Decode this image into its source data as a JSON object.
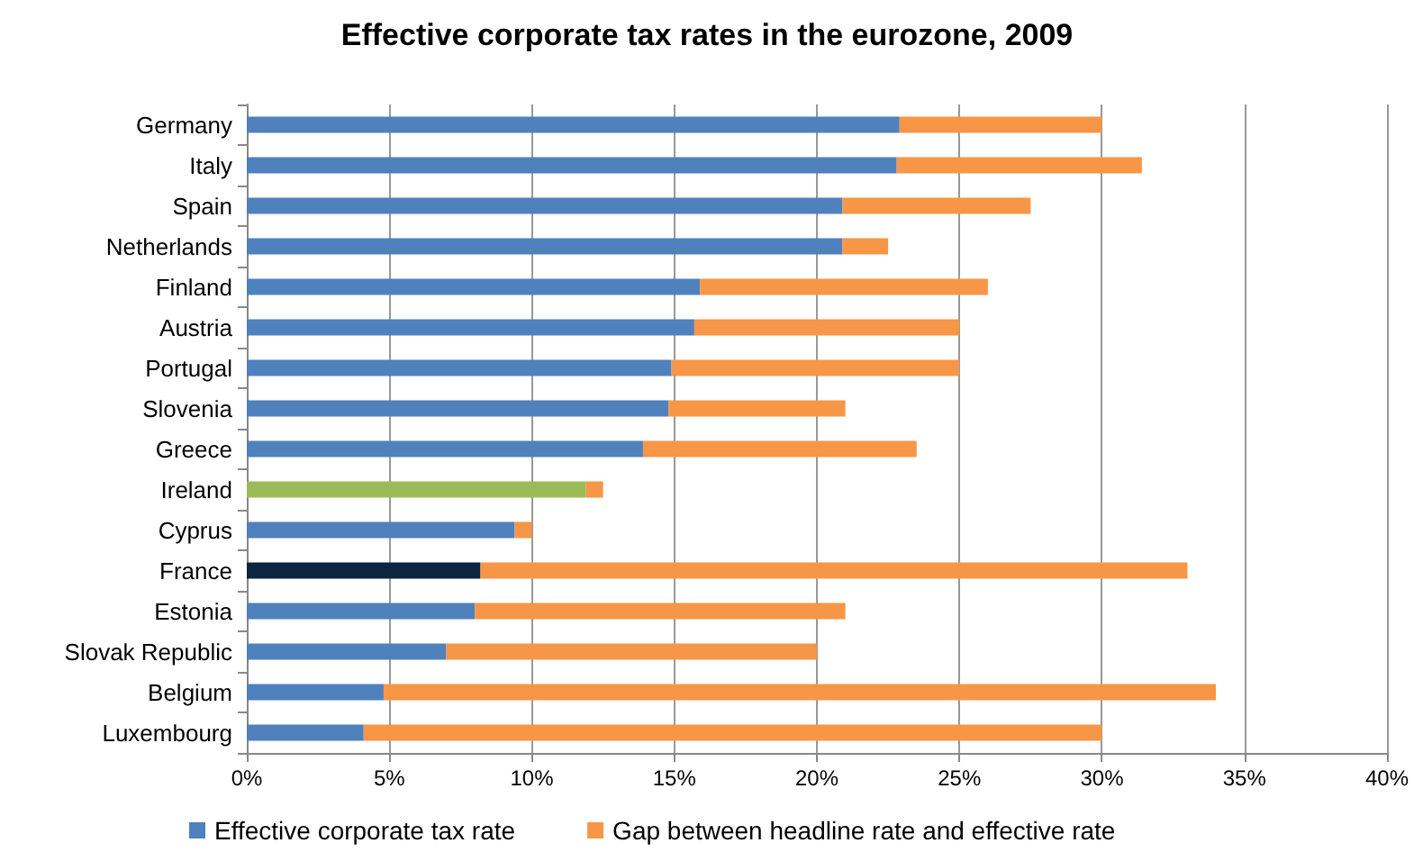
{
  "chart_data": {
    "type": "bar",
    "orientation": "horizontal",
    "stacked": true,
    "title": "Effective corporate tax rates in the eurozone, 2009",
    "categories": [
      "Germany",
      "Italy",
      "Spain",
      "Netherlands",
      "Finland",
      "Austria",
      "Portugal",
      "Slovenia",
      "Greece",
      "Ireland",
      "Cyprus",
      "France",
      "Estonia",
      "Slovak Republic",
      "Belgium",
      "Luxembourg"
    ],
    "series": [
      {
        "name": "Effective corporate tax rate",
        "color": "#4f81bd",
        "colors": [
          "#4f81bd",
          "#4f81bd",
          "#4f81bd",
          "#4f81bd",
          "#4f81bd",
          "#4f81bd",
          "#4f81bd",
          "#4f81bd",
          "#4f81bd",
          "#9bbb59",
          "#4f81bd",
          "#0f243e",
          "#4f81bd",
          "#4f81bd",
          "#4f81bd",
          "#4f81bd"
        ],
        "values": [
          22.9,
          22.8,
          20.9,
          20.9,
          15.9,
          15.7,
          14.9,
          14.8,
          13.9,
          11.9,
          9.4,
          8.2,
          8.0,
          7.0,
          4.8,
          4.1
        ]
      },
      {
        "name": "Gap between headline rate and effective rate",
        "color": "#f79646",
        "values": [
          7.1,
          8.6,
          6.6,
          1.6,
          10.1,
          9.3,
          10.1,
          6.2,
          9.6,
          0.6,
          0.6,
          24.8,
          13.0,
          13.0,
          29.2,
          25.9
        ]
      }
    ],
    "xlim": [
      0,
      40
    ],
    "xticks": [
      {
        "value": 0,
        "label": "0%"
      },
      {
        "value": 5,
        "label": "5%"
      },
      {
        "value": 10,
        "label": "10%"
      },
      {
        "value": 15,
        "label": "15%"
      },
      {
        "value": 20,
        "label": "20%"
      },
      {
        "value": 25,
        "label": "25%"
      },
      {
        "value": 30,
        "label": "30%"
      },
      {
        "value": 35,
        "label": "35%"
      },
      {
        "value": 40,
        "label": "40%"
      }
    ],
    "grid": "x",
    "legend": "bottom"
  }
}
